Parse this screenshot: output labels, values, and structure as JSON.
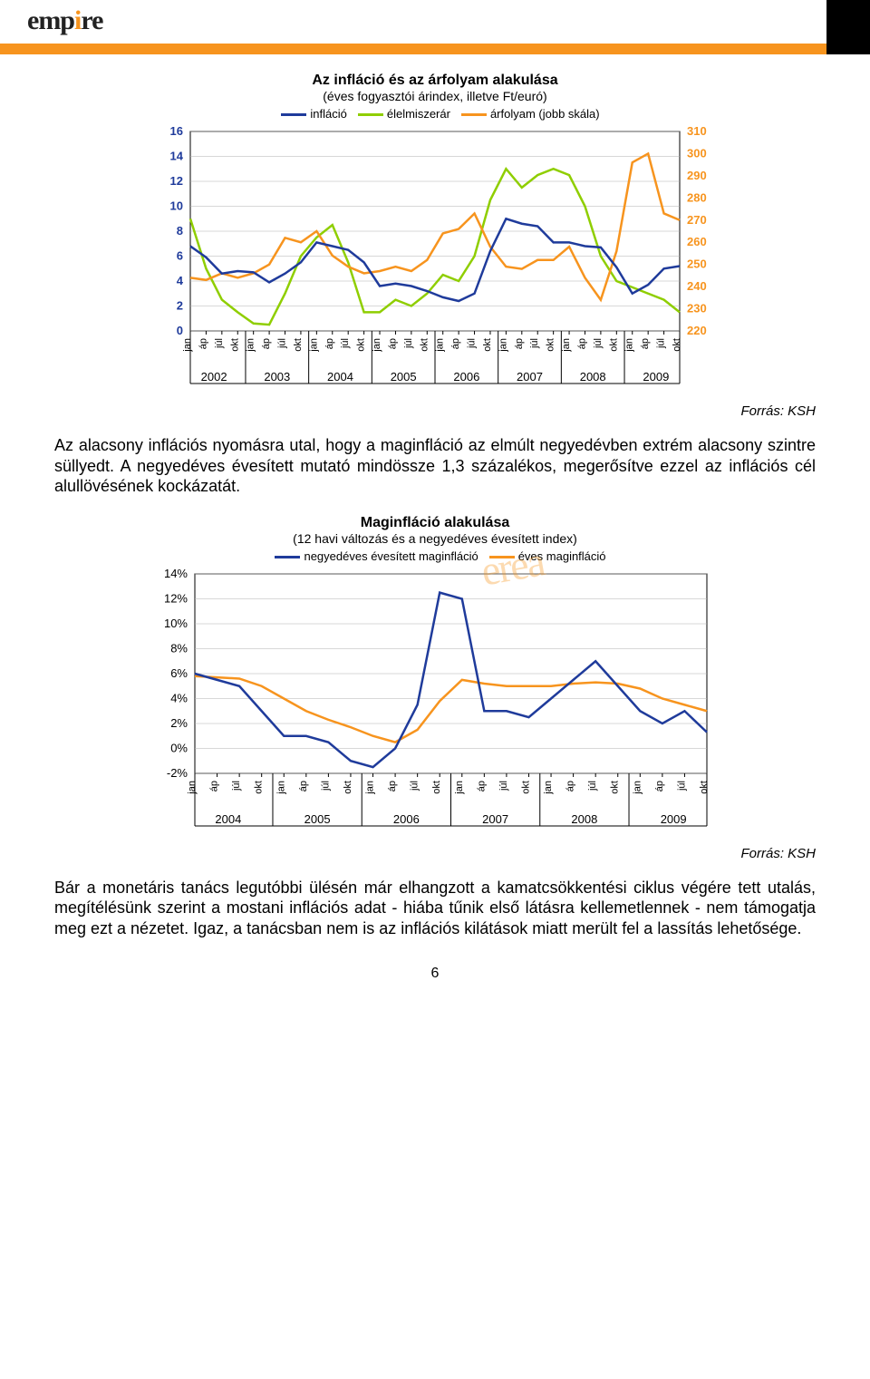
{
  "brand": {
    "name_pre": "emp",
    "name_i": "i",
    "name_post": "re",
    "accent": "#f7941e"
  },
  "chart1": {
    "type": "line",
    "title": "Az infláció és az árfolyam alakulása",
    "subtitle": "(éves fogyasztói árindex, illetve Ft/euró)",
    "title_fontsize": 16,
    "legend": [
      {
        "label": "infláció",
        "color": "#1f3b9b"
      },
      {
        "label": "élelmiszerár",
        "color": "#8fce00"
      },
      {
        "label": "árfolyam (jobb skála)",
        "color": "#f7941e"
      }
    ],
    "left_ylim": [
      0,
      16
    ],
    "left_tick_step": 2,
    "left_color": "#1f3b9b",
    "right_ylim": [
      220,
      310
    ],
    "right_tick_step": 10,
    "right_color": "#f7941e",
    "years": [
      2002,
      2003,
      2004,
      2005,
      2006,
      2007,
      2008,
      2009
    ],
    "month_labels": [
      "jan",
      "áp",
      "júl",
      "okt"
    ],
    "grid_color": "#b0b0b0",
    "background": "#ffffff",
    "series": {
      "inflacio": [
        6.8,
        5.9,
        4.6,
        4.8,
        4.7,
        3.9,
        4.6,
        5.5,
        7.1,
        6.8,
        6.5,
        5.5,
        3.6,
        3.8,
        3.6,
        3.2,
        2.7,
        2.4,
        3.0,
        6.4,
        9.0,
        8.6,
        8.4,
        7.1,
        7.1,
        6.8,
        6.7,
        5.1,
        3.0,
        3.7,
        5.0,
        5.2
      ],
      "elelmiszerar": [
        9.0,
        5.0,
        2.5,
        1.5,
        0.6,
        0.5,
        3.0,
        6.0,
        7.5,
        8.5,
        5.5,
        1.5,
        1.5,
        2.5,
        2.0,
        3.0,
        4.5,
        4.0,
        6.0,
        10.5,
        13.0,
        11.5,
        12.5,
        13.0,
        12.5,
        10.0,
        6.0,
        4.0,
        3.5,
        3.0,
        2.5,
        1.5
      ],
      "arfolyam": [
        244,
        243,
        246,
        244,
        246,
        250,
        262,
        260,
        265,
        254,
        249,
        246,
        247,
        249,
        247,
        252,
        264,
        266,
        273,
        258,
        249,
        248,
        252,
        252,
        258,
        244,
        234,
        256,
        296,
        300,
        273,
        270
      ]
    }
  },
  "source1": "Forrás: KSH",
  "para1": "Az alacsony inflációs nyomásra utal, hogy a maginfláció az elmúlt negyedévben extrém alacsony szintre süllyedt. A negyedéves évesített mutató mindössze 1,3 százalékos, megerősítve ezzel az inflációs cél alullövésének kockázatát.",
  "chart2": {
    "type": "line",
    "title": "Maginfláció alakulása",
    "subtitle": "(12 havi változás és a negyedéves évesített index)",
    "title_fontsize": 16,
    "legend": [
      {
        "label": "negyedéves évesített maginfláció",
        "color": "#1f3b9b"
      },
      {
        "label": "éves maginfláció",
        "color": "#f7941e"
      }
    ],
    "ylim": [
      -2,
      14
    ],
    "ytick_step": 2,
    "ytick_suffix": "%",
    "years": [
      2004,
      2005,
      2006,
      2007,
      2008,
      2009
    ],
    "month_labels": [
      "jan",
      "áp",
      "júl",
      "okt"
    ],
    "grid_color": "#b0b0b0",
    "background": "#ffffff",
    "series": {
      "quarterly": [
        6.0,
        5.5,
        5.0,
        3.0,
        1.0,
        1.0,
        0.5,
        -1.0,
        -1.5,
        0.0,
        3.5,
        12.5,
        12.0,
        3.0,
        3.0,
        2.5,
        4.0,
        5.5,
        7.0,
        5.0,
        3.0,
        2.0,
        3.0,
        1.3
      ],
      "annual": [
        5.8,
        5.7,
        5.6,
        5.0,
        4.0,
        3.0,
        2.3,
        1.7,
        1.0,
        0.5,
        1.5,
        3.8,
        5.5,
        5.2,
        5.0,
        5.0,
        5.0,
        5.2,
        5.3,
        5.2,
        4.8,
        4.0,
        3.5,
        3.0
      ]
    }
  },
  "source2": "Forrás: KSH",
  "para2": "Bár a monetáris tanács legutóbbi ülésén már elhangzott a kamatcsökkentési ciklus végére tett utalás, megítélésünk szerint a mostani inflációs adat - hiába tűnik első látásra kellemetlennek - nem támogatja meg ezt a nézetet. Igaz, a tanácsban nem is az inflációs kilátások miatt merült fel a lassítás lehetősége.",
  "page_number": "6"
}
